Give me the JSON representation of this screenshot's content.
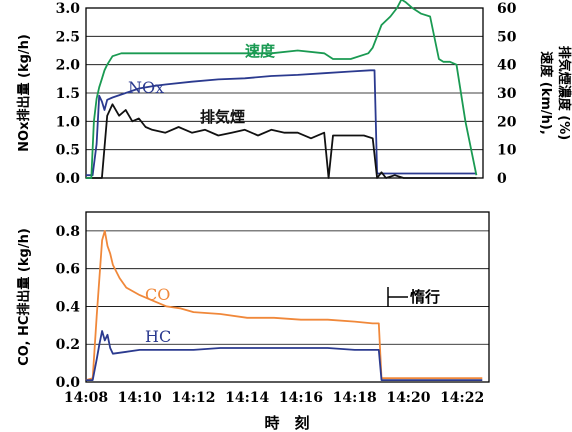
{
  "chart_data": [
    {
      "type": "line",
      "xlabel": "",
      "ylabel": "NOx排出量 (kg/h)",
      "ylabel_right": "速度 (km/h),\n排気煙濃度 (%)",
      "xlim": [
        "14:08",
        "14:23"
      ],
      "ylim": [
        0,
        3.0
      ],
      "ylim_right": [
        0,
        60
      ],
      "yticks": [
        "0.0",
        "0.5",
        "1.0",
        "1.5",
        "2.0",
        "2.5",
        "3.0"
      ],
      "yticks_right": [
        "0",
        "10",
        "20",
        "30",
        "40",
        "50",
        "60"
      ],
      "grid": true,
      "series": [
        {
          "name": "NOx",
          "color": "#2b3a8f",
          "axis": "left",
          "x": [
            "14:08:00",
            "14:08:15",
            "14:08:24",
            "14:08:30",
            "14:08:36",
            "14:08:42",
            "14:08:48",
            "14:09:00",
            "14:09:30",
            "14:10:00",
            "14:10:30",
            "14:11:00",
            "14:12:00",
            "14:13:00",
            "14:14:00",
            "14:15:00",
            "14:16:00",
            "14:17:00",
            "14:18:00",
            "14:18:45",
            "14:18:54",
            "14:19:00",
            "14:19:30",
            "14:21:00",
            "14:22:00",
            "14:22:45"
          ],
          "values": [
            0.05,
            0.05,
            0.6,
            1.45,
            1.35,
            1.2,
            1.38,
            1.42,
            1.5,
            1.58,
            1.62,
            1.65,
            1.7,
            1.74,
            1.76,
            1.8,
            1.82,
            1.85,
            1.88,
            1.9,
            1.9,
            0.08,
            0.08,
            0.08,
            0.08,
            0.08
          ]
        },
        {
          "name": "排気煙",
          "color": "#111111",
          "axis": "right",
          "x": [
            "14:08:00",
            "14:08:36",
            "14:08:48",
            "14:09:00",
            "14:09:15",
            "14:09:30",
            "14:09:45",
            "14:10:00",
            "14:10:15",
            "14:10:30",
            "14:11:00",
            "14:11:30",
            "14:12:00",
            "14:12:30",
            "14:13:00",
            "14:13:30",
            "14:14:00",
            "14:14:30",
            "14:15:00",
            "14:15:30",
            "14:16:00",
            "14:16:30",
            "14:17:00",
            "14:17:10",
            "14:17:20",
            "14:17:30",
            "14:18:00",
            "14:18:30",
            "14:18:50",
            "14:19:00",
            "14:19:10",
            "14:19:20",
            "14:19:40",
            "14:20:00",
            "14:22:45"
          ],
          "values": [
            0,
            0,
            22,
            26,
            22,
            24,
            20,
            21,
            18,
            17,
            16,
            18,
            16,
            17,
            15,
            16,
            17,
            15,
            17,
            16,
            16,
            14,
            16,
            0,
            15,
            15,
            15,
            15,
            14,
            0,
            2,
            0,
            1,
            0,
            0
          ]
        },
        {
          "name": "速度",
          "color": "#1a9a52",
          "axis": "right",
          "x": [
            "14:08:00",
            "14:08:12",
            "14:08:18",
            "14:08:24",
            "14:08:30",
            "14:08:36",
            "14:08:42",
            "14:08:48",
            "14:09:00",
            "14:09:20",
            "14:10:00",
            "14:11:00",
            "14:12:00",
            "14:13:00",
            "14:14:00",
            "14:15:00",
            "14:16:00",
            "14:17:00",
            "14:17:20",
            "14:18:00",
            "14:18:40",
            "14:18:50",
            "14:19:10",
            "14:19:30",
            "14:19:45",
            "14:19:55",
            "14:20:05",
            "14:20:20",
            "14:20:40",
            "14:21:00",
            "14:21:20",
            "14:21:30",
            "14:21:45",
            "14:22:00",
            "14:22:20",
            "14:22:45"
          ],
          "values": [
            0,
            0,
            20,
            28,
            32,
            35,
            38,
            40,
            43,
            44,
            44,
            44,
            44,
            44,
            44,
            44,
            45,
            44,
            42,
            42,
            44,
            46,
            54,
            57,
            60,
            63,
            62,
            60,
            58,
            57,
            42,
            41,
            41,
            40,
            20,
            1
          ]
        }
      ],
      "annotations": [
        "NOx",
        "排気煙",
        "速度"
      ]
    },
    {
      "type": "line",
      "xlabel": "時　刻",
      "ylabel": "CO, HC排出量 (kg/h)",
      "xlim": [
        "14:08",
        "14:23"
      ],
      "ylim": [
        0,
        0.9
      ],
      "yticks": [
        "0.0",
        "0.2",
        "0.4",
        "0.6",
        "0.8"
      ],
      "xticks": [
        "14:08",
        "14:10",
        "14:12",
        "14:14",
        "14:16",
        "14:18",
        "14:20",
        "14:22"
      ],
      "grid": true,
      "series": [
        {
          "name": "CO",
          "color": "#f0883a",
          "x": [
            "14:08:00",
            "14:08:15",
            "14:08:24",
            "14:08:30",
            "14:08:36",
            "14:08:42",
            "14:08:48",
            "14:08:54",
            "14:09:00",
            "14:09:15",
            "14:09:30",
            "14:10:00",
            "14:10:30",
            "14:11:00",
            "14:11:30",
            "14:12:00",
            "14:13:00",
            "14:14:00",
            "14:15:00",
            "14:16:00",
            "14:17:00",
            "14:18:00",
            "14:18:40",
            "14:18:54",
            "14:19:00",
            "14:19:30",
            "14:20:00",
            "14:21:00",
            "14:22:00",
            "14:22:45"
          ],
          "values": [
            0.01,
            0.02,
            0.35,
            0.55,
            0.75,
            0.8,
            0.72,
            0.68,
            0.62,
            0.55,
            0.5,
            0.46,
            0.43,
            0.4,
            0.39,
            0.37,
            0.36,
            0.34,
            0.34,
            0.33,
            0.33,
            0.32,
            0.31,
            0.31,
            0.02,
            0.02,
            0.02,
            0.02,
            0.02,
            0.02
          ]
        },
        {
          "name": "HC",
          "color": "#2b3a8f",
          "x": [
            "14:08:00",
            "14:08:15",
            "14:08:24",
            "14:08:30",
            "14:08:36",
            "14:08:42",
            "14:08:48",
            "14:08:54",
            "14:09:00",
            "14:09:30",
            "14:10:00",
            "14:11:00",
            "14:12:00",
            "14:13:00",
            "14:14:00",
            "14:15:00",
            "14:16:00",
            "14:17:00",
            "14:18:00",
            "14:18:54",
            "14:19:00",
            "14:19:30",
            "14:20:00",
            "14:22:45"
          ],
          "values": [
            0.01,
            0.01,
            0.12,
            0.2,
            0.27,
            0.22,
            0.25,
            0.18,
            0.15,
            0.16,
            0.17,
            0.17,
            0.17,
            0.18,
            0.18,
            0.18,
            0.18,
            0.18,
            0.17,
            0.17,
            0.01,
            0.01,
            0.01,
            0.01
          ]
        }
      ],
      "annotations": [
        "CO",
        "HC",
        "惰行"
      ]
    }
  ]
}
